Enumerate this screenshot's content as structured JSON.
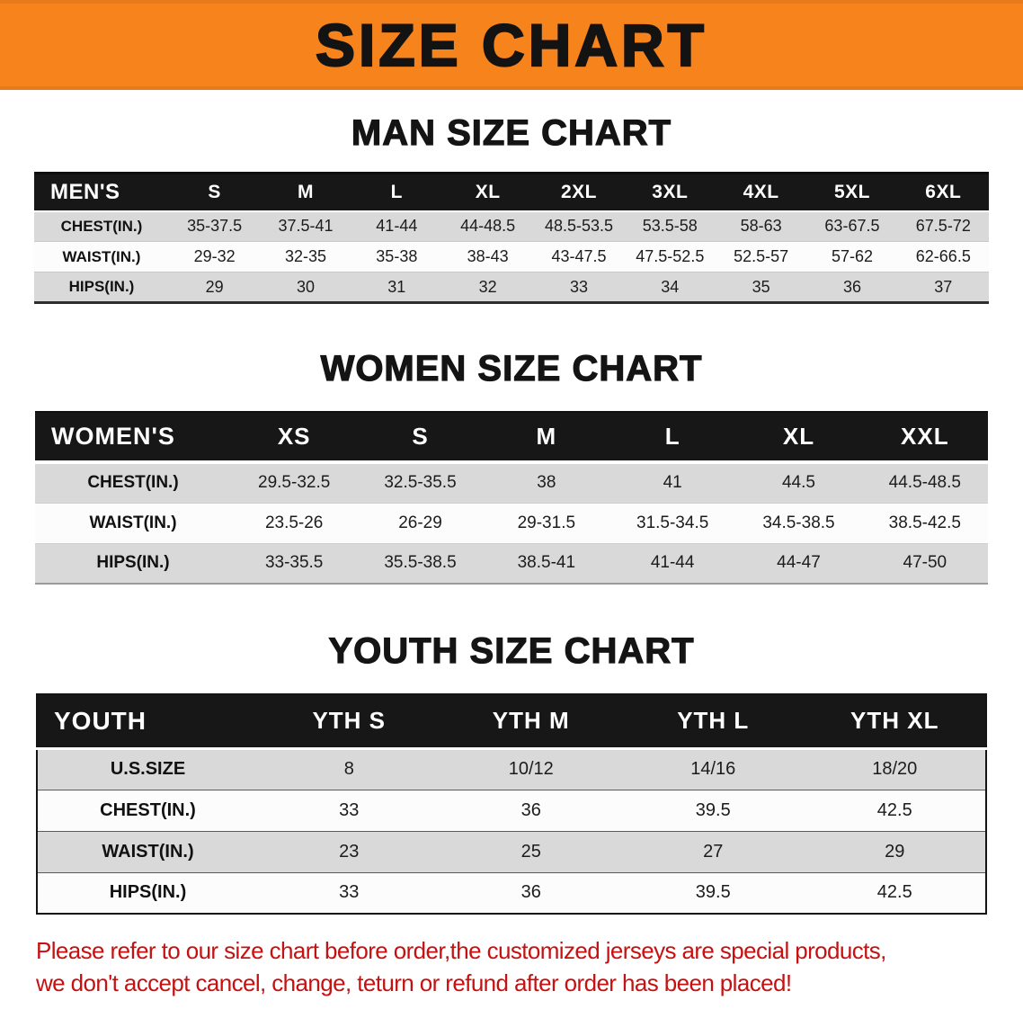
{
  "banner": {
    "title": "SIZE CHART"
  },
  "men": {
    "heading": "MAN SIZE CHART",
    "table": {
      "header": [
        "MEN'S",
        "S",
        "M",
        "L",
        "XL",
        "2XL",
        "3XL",
        "4XL",
        "5XL",
        "6XL"
      ],
      "rows": [
        [
          "CHEST(IN.)",
          "35-37.5",
          "37.5-41",
          "41-44",
          "44-48.5",
          "48.5-53.5",
          "53.5-58",
          "58-63",
          "63-67.5",
          "67.5-72"
        ],
        [
          "WAIST(IN.)",
          "29-32",
          "32-35",
          "35-38",
          "38-43",
          "43-47.5",
          "47.5-52.5",
          "52.5-57",
          "57-62",
          "62-66.5"
        ],
        [
          "HIPS(IN.)",
          "29",
          "30",
          "31",
          "32",
          "33",
          "34",
          "35",
          "36",
          "37"
        ]
      ]
    }
  },
  "women": {
    "heading": "WOMEN SIZE CHART",
    "table": {
      "header": [
        "WOMEN'S",
        "XS",
        "S",
        "M",
        "L",
        "XL",
        "XXL"
      ],
      "rows": [
        [
          "CHEST(IN.)",
          "29.5-32.5",
          "32.5-35.5",
          "38",
          "41",
          "44.5",
          "44.5-48.5"
        ],
        [
          "WAIST(IN.)",
          "23.5-26",
          "26-29",
          "29-31.5",
          "31.5-34.5",
          "34.5-38.5",
          "38.5-42.5"
        ],
        [
          "HIPS(IN.)",
          "33-35.5",
          "35.5-38.5",
          "38.5-41",
          "41-44",
          "44-47",
          "47-50"
        ]
      ]
    }
  },
  "youth": {
    "heading": "YOUTH SIZE CHART",
    "table": {
      "header": [
        "YOUTH",
        "YTH S",
        "YTH M",
        "YTH L",
        "YTH XL"
      ],
      "rows": [
        [
          "U.S.SIZE",
          "8",
          "10/12",
          "14/16",
          "18/20"
        ],
        [
          "CHEST(IN.)",
          "33",
          "36",
          "39.5",
          "42.5"
        ],
        [
          "WAIST(IN.)",
          "23",
          "25",
          "27",
          "29"
        ],
        [
          "HIPS(IN.)",
          "33",
          "36",
          "39.5",
          "42.5"
        ]
      ]
    }
  },
  "disclaimer": {
    "line1": "Please refer to our size chart before order,the customized jerseys are special products,",
    "line2": "we don't accept cancel, change, teturn or refund after order has been placed!"
  },
  "colors": {
    "banner_orange": "#F6831C",
    "table_header_black": "#171717",
    "row_gray": "#D9D9D9",
    "disclaimer_red": "#C51111"
  }
}
